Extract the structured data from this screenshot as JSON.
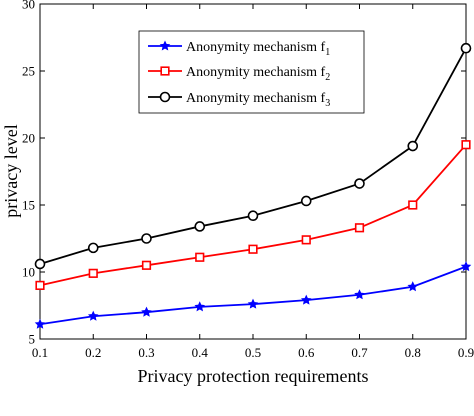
{
  "chart_data": {
    "type": "line",
    "xlabel": "Privacy protection requirements",
    "ylabel": "privacy level",
    "xlim": [
      0.1,
      0.9
    ],
    "ylim": [
      5,
      30
    ],
    "x": [
      0.1,
      0.2,
      0.3,
      0.4,
      0.5,
      0.6,
      0.7,
      0.8,
      0.9
    ],
    "xticks": [
      "0.1",
      "0.2",
      "0.3",
      "0.4",
      "0.5",
      "0.6",
      "0.7",
      "0.8",
      "0.9"
    ],
    "yticks": [
      "5",
      "10",
      "15",
      "20",
      "25",
      "30"
    ],
    "grid": false,
    "legend_position": "top-center",
    "series": [
      {
        "name": "Anonymity mechanism f",
        "subscript": "1",
        "color": "#0000ff",
        "marker": "star",
        "values": [
          6.1,
          6.7,
          7.0,
          7.4,
          7.6,
          7.9,
          8.3,
          8.9,
          10.4
        ]
      },
      {
        "name": "Anonymity mechanism f",
        "subscript": "2",
        "color": "#ff0000",
        "marker": "square",
        "values": [
          9.0,
          9.9,
          10.5,
          11.1,
          11.7,
          12.4,
          13.3,
          15.0,
          19.5
        ]
      },
      {
        "name": "Anonymity mechanism f",
        "subscript": "3",
        "color": "#000000",
        "marker": "circle",
        "values": [
          10.6,
          11.8,
          12.5,
          13.4,
          14.2,
          15.3,
          16.6,
          19.4,
          26.7
        ]
      }
    ]
  }
}
